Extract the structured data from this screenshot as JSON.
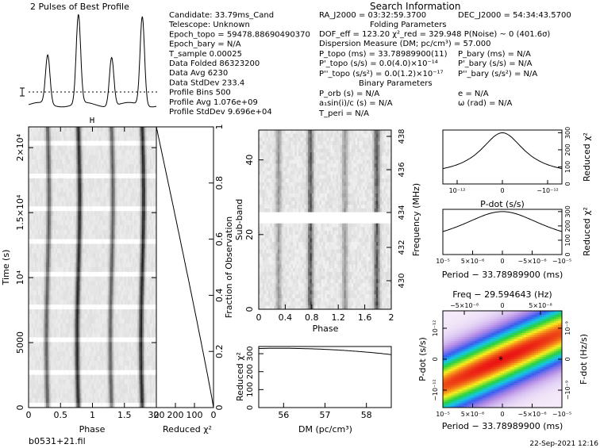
{
  "profile_title": "2 Pulses of Best Profile",
  "search_title": "Search Information",
  "info_left": [
    "Candidate:  33.79ms_Cand",
    "Telescope:  Unknown",
    "Epoch_topo = 59478.88690490370",
    "Epoch_bary = N/A",
    "T_sample        0.00025",
    "Data Folded     86323200",
    "Data Avg        6230",
    "Data StdDev     233.4",
    "Profile Bins    500",
    "Profile Avg     1.076e+09",
    "Profile StdDev  9.696e+04"
  ],
  "info_mid": [
    "RA_J2000 = 03:32:59.3700",
    "Folding Parameters",
    "DOF_eff = 123.20  χ²_red = 329.948  P(Noise) ~ 0  (401.6σ)",
    "Dispersion Measure (DM; pc/cm³) = 57.000",
    "P_topo (ms) = 33.78989900(11)",
    "P'_topo (s/s) = 0.0(4.0)×10⁻¹⁴",
    "P''_topo (s/s²) = 0.0(1.2)×10⁻¹⁷",
    "Binary Parameters",
    "P_orb (s) = N/A",
    "a₁sin(i)/c (s) = N/A",
    "T_peri = N/A"
  ],
  "info_right": [
    "DEC_J2000 = 54:34:43.5700",
    "P_bary (ms) = N/A",
    "P'_bary (s/s) = N/A",
    "P''_bary (s/s²) = N/A",
    "e = N/A",
    "ω (rad) = N/A"
  ],
  "filename": "b0531+21.fil",
  "timestamp": "22-Sep-2021 12:16",
  "chart_data": [
    {
      "type": "line",
      "title": "2 Pulses of Best Profile",
      "x_range": [
        0,
        2
      ],
      "pulse_phases": [
        0.3,
        0.78,
        1.3,
        1.78
      ]
    },
    {
      "type": "heatmap",
      "xlabel": "Phase",
      "ylabel": "Time (s)",
      "x_ticks": [
        "0",
        "0.5",
        "1",
        "1.5",
        "2"
      ],
      "y_ticks": [
        "0",
        "5000",
        "10⁴",
        "1.5×10⁴",
        "2×10⁴"
      ],
      "y_range": [
        0,
        21600
      ],
      "x_range": [
        0,
        2
      ]
    },
    {
      "type": "line",
      "xlabel": "Reduced χ²",
      "ylabel": "Fraction of Observation",
      "x_ticks": [
        "300",
        "200",
        "100",
        "0"
      ],
      "y_ticks": [
        "0",
        "0.2",
        "0.4",
        "0.6",
        "0.8",
        "1"
      ],
      "x_range": [
        300,
        0
      ],
      "y_range": [
        0,
        1
      ]
    },
    {
      "type": "heatmap",
      "xlabel": "Phase",
      "ylabel": "Sub-band",
      "y2label": "Frequency (MHz)",
      "x_ticks": [
        "0",
        "0.4",
        "0.8",
        "1.2",
        "1.6",
        "2"
      ],
      "y_ticks": [
        "0",
        "20",
        "40"
      ],
      "y2_ticks": [
        "430",
        "432",
        "434",
        "436",
        "438"
      ],
      "x_range": [
        0,
        2
      ],
      "y_range": [
        0,
        48
      ]
    },
    {
      "type": "line",
      "xlabel": "DM (pc/cm³)",
      "ylabel": "Reduced χ²",
      "x_ticks": [
        "56",
        "57",
        "58"
      ],
      "y_ticks": [
        "0",
        "100",
        "200",
        "300"
      ],
      "x_range": [
        55.4,
        58.6
      ],
      "y_range": [
        0,
        340
      ]
    },
    {
      "type": "line",
      "xlabel": "P-dot (s/s)",
      "ylabel": "Reduced χ²",
      "x_ticks": [
        "10⁻¹²",
        "0",
        "−10⁻¹²"
      ],
      "y_ticks": [
        "0",
        "100",
        "200",
        "300"
      ]
    },
    {
      "type": "line",
      "xlabel": "Period − 33.78989900 (ms)",
      "ylabel": "Reduced χ²",
      "x_ticks": [
        "10⁻⁵",
        "5×10⁻⁶",
        "0",
        "−5×10⁻⁶",
        "−10⁻⁵"
      ],
      "y_ticks": [
        "0",
        "100",
        "200",
        "300"
      ]
    },
    {
      "type": "heatmap",
      "title": "Freq − 29.594643 (Hz)",
      "xlabel": "Period − 33.78989900 (ms)",
      "ylabel": "P-dot (s/s)",
      "y2label": "F-dot (Hz/s)",
      "top_ticks": [
        "−5×10⁻⁸",
        "0",
        "5×10⁻⁸"
      ],
      "x_ticks": [
        "10⁻⁵",
        "5×10⁻⁶",
        "0",
        "−5×10⁻⁶",
        "−10⁻⁵"
      ],
      "y_ticks": [
        "10⁻¹²",
        "0",
        "−10⁻¹²"
      ],
      "y2_ticks": [
        "10⁻⁹",
        "0",
        "−10⁻⁹"
      ]
    }
  ]
}
